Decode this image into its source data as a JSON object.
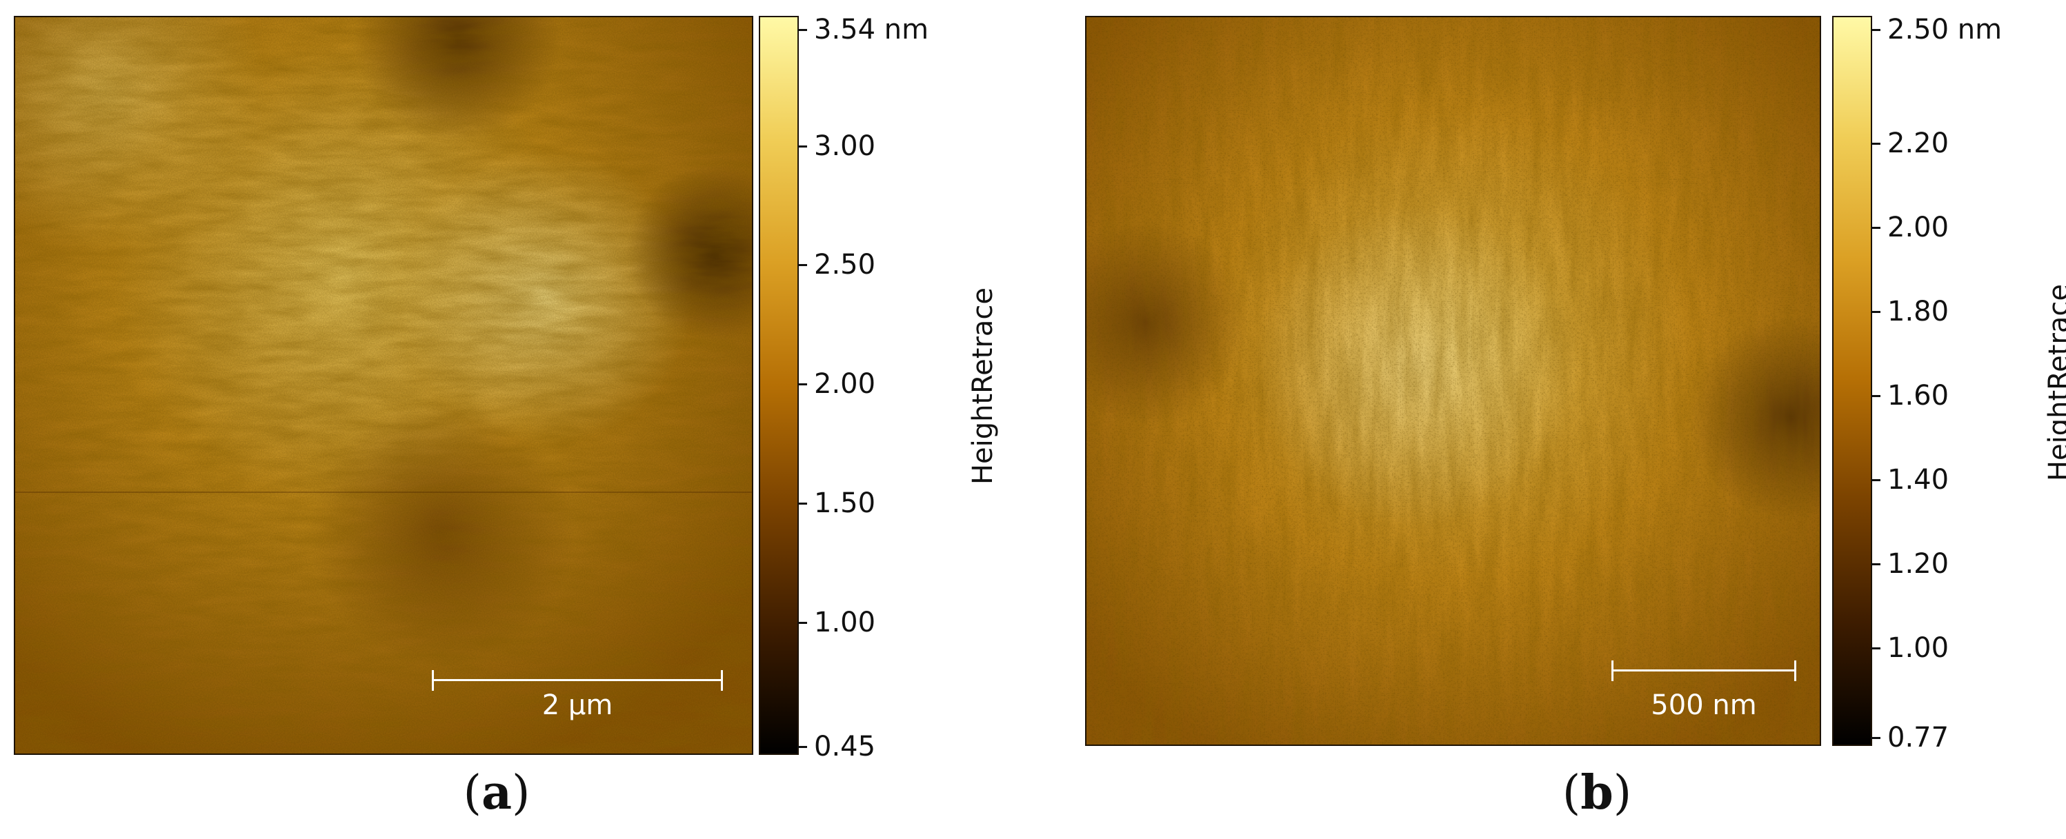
{
  "panels": [
    {
      "caption_letter": "a",
      "scale_bar_label": "2 µm",
      "colorbar_title": "HeightRetrace",
      "colorbar_max": 3.54,
      "colorbar_min": 0.45,
      "colorbar_unit": "nm",
      "colorbar_ticks": [
        {
          "value": 3.54,
          "label": "3.54 nm"
        },
        {
          "value": 3.0,
          "label": "3.00"
        },
        {
          "value": 2.5,
          "label": "2.50"
        },
        {
          "value": 2.0,
          "label": "2.00"
        },
        {
          "value": 1.5,
          "label": "1.50"
        },
        {
          "value": 1.0,
          "label": "1.00"
        },
        {
          "value": 0.45,
          "label": "0.45"
        }
      ]
    },
    {
      "caption_letter": "b",
      "scale_bar_label": "500 nm",
      "colorbar_title": "HeightRetrace",
      "colorbar_max": 2.5,
      "colorbar_min": 0.77,
      "colorbar_unit": "nm",
      "colorbar_ticks": [
        {
          "value": 2.5,
          "label": "2.50 nm"
        },
        {
          "value": 2.2,
          "label": "2.20"
        },
        {
          "value": 2.0,
          "label": "2.00"
        },
        {
          "value": 1.8,
          "label": "1.80"
        },
        {
          "value": 1.6,
          "label": "1.60"
        },
        {
          "value": 1.4,
          "label": "1.40"
        },
        {
          "value": 1.2,
          "label": "1.20"
        },
        {
          "value": 1.0,
          "label": "1.00"
        },
        {
          "value": 0.77,
          "label": "0.77"
        }
      ]
    }
  ],
  "colormap": [
    "#000000",
    "#3d1c00",
    "#7a4200",
    "#b56f05",
    "#dba024",
    "#f0cd56",
    "#fff9a6"
  ]
}
